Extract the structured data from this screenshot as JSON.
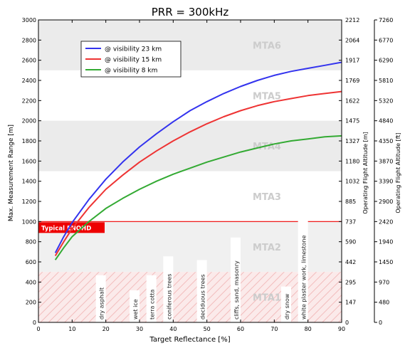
{
  "chart_data": {
    "type": "line",
    "title": "PRR = 300kHz",
    "xlabel": "Target Reflectance [%]",
    "ylabel": "Max. Measurement Range [m]",
    "y2label": "Operating Flight Altitude [m]",
    "y3label": "Operating Flight Altitude [ft]",
    "xlim": [
      0,
      90
    ],
    "ylim": [
      0,
      3000
    ],
    "x_ticks": [
      "0",
      "10",
      "20",
      "30",
      "40",
      "50",
      "60",
      "70",
      "80",
      "90"
    ],
    "y_ticks": [
      "0",
      "200",
      "400",
      "600",
      "800",
      "1000",
      "1200",
      "1400",
      "1600",
      "1800",
      "2000",
      "2200",
      "2400",
      "2600",
      "2800",
      "3000"
    ],
    "y2_ticks": [
      "0",
      "147",
      "295",
      "442",
      "590",
      "737",
      "885",
      "1032",
      "1180",
      "1327",
      "1475",
      "1622",
      "1769",
      "1917",
      "2064",
      "2212"
    ],
    "y3_ticks": [
      "0",
      "480",
      "970",
      "1450",
      "1940",
      "2420",
      "2900",
      "3390",
      "3870",
      "4350",
      "4840",
      "5320",
      "5810",
      "6290",
      "6770",
      "7260"
    ],
    "grid": false,
    "legend_position": "top-left",
    "series": [
      {
        "name": "@ visibility 23 km",
        "color": "#3333ee",
        "x": [
          5,
          7.5,
          10,
          15,
          20,
          25,
          30,
          35,
          40,
          45,
          50,
          55,
          60,
          65,
          70,
          75,
          80,
          85,
          90
        ],
        "values": [
          690,
          850,
          990,
          1220,
          1420,
          1590,
          1740,
          1870,
          1990,
          2100,
          2190,
          2270,
          2340,
          2400,
          2450,
          2490,
          2520,
          2550,
          2580
        ]
      },
      {
        "name": "@ visibility 15 km",
        "color": "#ee3333",
        "x": [
          5,
          7.5,
          10,
          15,
          20,
          25,
          30,
          35,
          40,
          45,
          50,
          55,
          60,
          65,
          70,
          75,
          80,
          85,
          90
        ],
        "values": [
          660,
          800,
          930,
          1140,
          1320,
          1460,
          1590,
          1700,
          1800,
          1890,
          1970,
          2040,
          2100,
          2150,
          2190,
          2220,
          2250,
          2270,
          2290
        ]
      },
      {
        "name": "@ visibility 8 km",
        "color": "#33aa33",
        "x": [
          5,
          7.5,
          10,
          15,
          20,
          25,
          30,
          35,
          40,
          45,
          50,
          55,
          60,
          65,
          70,
          75,
          80,
          85,
          90
        ],
        "values": [
          620,
          740,
          850,
          1000,
          1130,
          1230,
          1320,
          1400,
          1470,
          1530,
          1590,
          1640,
          1690,
          1730,
          1770,
          1800,
          1820,
          1840,
          1850
        ]
      }
    ],
    "zones": [
      {
        "label": "MTA6",
        "from": 2500,
        "to": 3000,
        "fill": "#ebebeb"
      },
      {
        "label": "MTA5",
        "from": 2000,
        "to": 2500,
        "fill": "#ffffff"
      },
      {
        "label": "MTA4",
        "from": 1500,
        "to": 2000,
        "fill": "#ebebeb"
      },
      {
        "label": "MTA3",
        "from": 1000,
        "to": 1500,
        "fill": "#ffffff"
      },
      {
        "label": "MTA2",
        "from": 500,
        "to": 1000,
        "fill": "#f0f0f0"
      },
      {
        "label": "MTA1",
        "from": 0,
        "to": 500,
        "fill": "#fbeaea"
      }
    ],
    "reference_line": {
      "label": "Typical ENOHD",
      "y": 1000,
      "color": "#ee0000"
    },
    "annotations": [
      {
        "text": "dry asphalt",
        "x": 20
      },
      {
        "text": "wet ice",
        "x": 30
      },
      {
        "text": "terra cotta",
        "x": 35
      },
      {
        "text": "coniferous trees",
        "x": 40
      },
      {
        "text": "deciduous trees",
        "x": 50
      },
      {
        "text": "cliffs, sand, masonry",
        "x": 60
      },
      {
        "text": "dry snow",
        "x": 75
      },
      {
        "text": "white plaster work, limestone",
        "x": 80
      }
    ]
  }
}
